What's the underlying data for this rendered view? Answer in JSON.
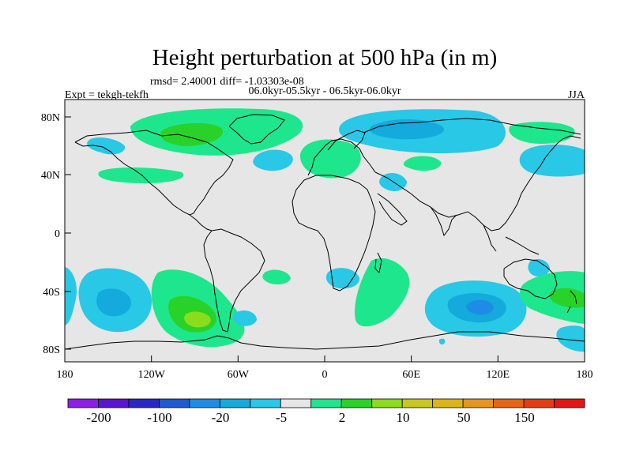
{
  "chart_data": {
    "type": "heatmap",
    "title": "Height perturbation at 500 hPa (in m)",
    "stats_line": "rmsd= 2.40001 diff= -1.03303e-08",
    "left_label": "Expt = tekgh-tekfh",
    "center_label": "06.0kyr-05.5kyr - 06.5kyr-06.0kyr",
    "right_label": "JJA",
    "x_ticks": [
      "180",
      "120W",
      "60W",
      "0",
      "60E",
      "120E",
      "180"
    ],
    "y_ticks": [
      "80N",
      "40N",
      "0",
      "40S",
      "80S"
    ],
    "xlim": [
      -180,
      180
    ],
    "ylim": [
      -90,
      90
    ],
    "colorbar": {
      "colors": [
        "#8c1ee6",
        "#5a14d2",
        "#2828c8",
        "#1e5ad2",
        "#1e8ce6",
        "#14aadc",
        "#28c8e6",
        "#e6e6e6",
        "#1ee68c",
        "#28d228",
        "#8cdc1e",
        "#c8c81e",
        "#dcb414",
        "#e6961e",
        "#e66414",
        "#e63c14",
        "#e61414"
      ],
      "labels": [
        "-200",
        "-100",
        "-20",
        "-5",
        "2",
        "10",
        "50",
        "150"
      ]
    },
    "regions": [
      {
        "level": "green",
        "lon": -115,
        "lat": 77,
        "desc": "Arctic Canada / Greenland positive"
      },
      {
        "level": "green",
        "lon": -100,
        "lat": 74,
        "desc": "Arctic Canada inner"
      },
      {
        "level": "cyan",
        "lon": -150,
        "lat": 63,
        "desc": "Alaska negative"
      },
      {
        "level": "green",
        "lon": -110,
        "lat": 42,
        "desc": "North America positive"
      },
      {
        "level": "cyan",
        "lon": -40,
        "lat": 50,
        "desc": "North Atlantic negative"
      },
      {
        "level": "green",
        "lon": 5,
        "lat": 55,
        "desc": "Europe positive"
      },
      {
        "level": "cyan",
        "lon": 25,
        "lat": 45,
        "desc": "Mediterranean negative"
      },
      {
        "level": "cyan",
        "lon": 70,
        "lat": 76,
        "desc": "Siberia negative"
      },
      {
        "level": "green",
        "lon": 155,
        "lat": 74,
        "desc": "East Siberia positive"
      },
      {
        "level": "cyan",
        "lon": 160,
        "lat": 50,
        "desc": "North Pacific negative"
      },
      {
        "level": "green",
        "lon": 80,
        "lat": 50,
        "desc": "Central Asia positive"
      },
      {
        "level": "cyan",
        "lon": -145,
        "lat": -57,
        "desc": "South Pacific negative"
      },
      {
        "level": "green",
        "lon": -95,
        "lat": -55,
        "desc": "Southeast Pacific positive"
      },
      {
        "level": "lime",
        "lon": -85,
        "lat": -60,
        "desc": "Southeast Pacific maximum"
      },
      {
        "level": "green",
        "lon": 30,
        "lat": -55,
        "desc": "South Atlantic/Indian positive"
      },
      {
        "level": "blue",
        "lon": 105,
        "lat": -52,
        "desc": "Southern Indian Ocean minimum"
      },
      {
        "level": "green",
        "lon": 165,
        "lat": -45,
        "desc": "Tasman Sea positive"
      }
    ]
  }
}
